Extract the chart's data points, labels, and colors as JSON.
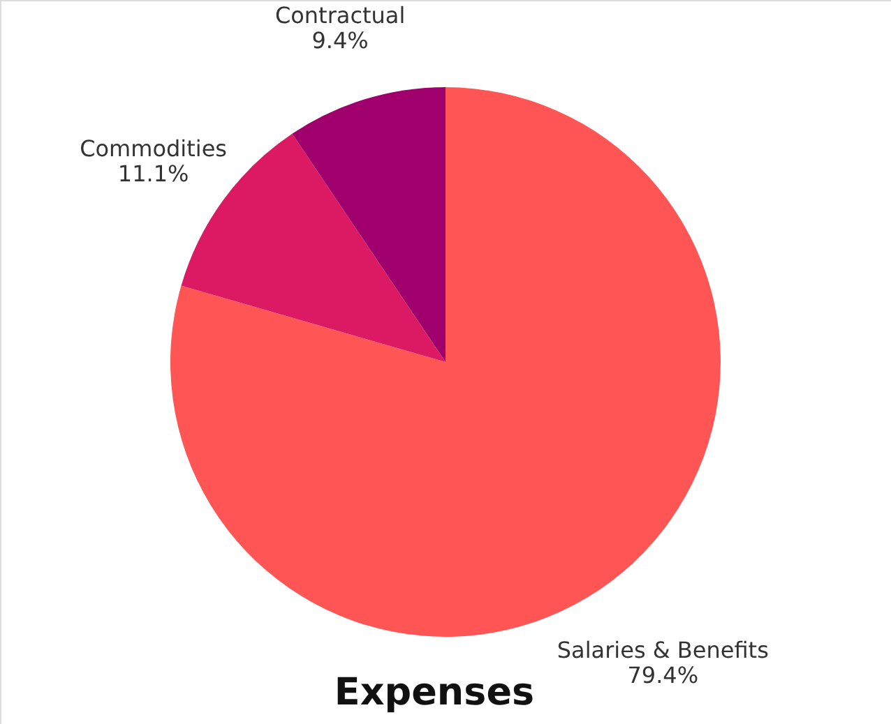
{
  "chart_data": {
    "type": "pie",
    "title": "Expenses",
    "categories": [
      "Salaries & Benefits",
      "Commodities",
      "Contractual"
    ],
    "values": [
      79.4,
      11.1,
      9.4
    ],
    "value_labels": [
      "79.4%",
      "11.1%",
      "9.4%"
    ],
    "colors": [
      "#ff5555",
      "#dc1a64",
      "#a0006c"
    ]
  }
}
